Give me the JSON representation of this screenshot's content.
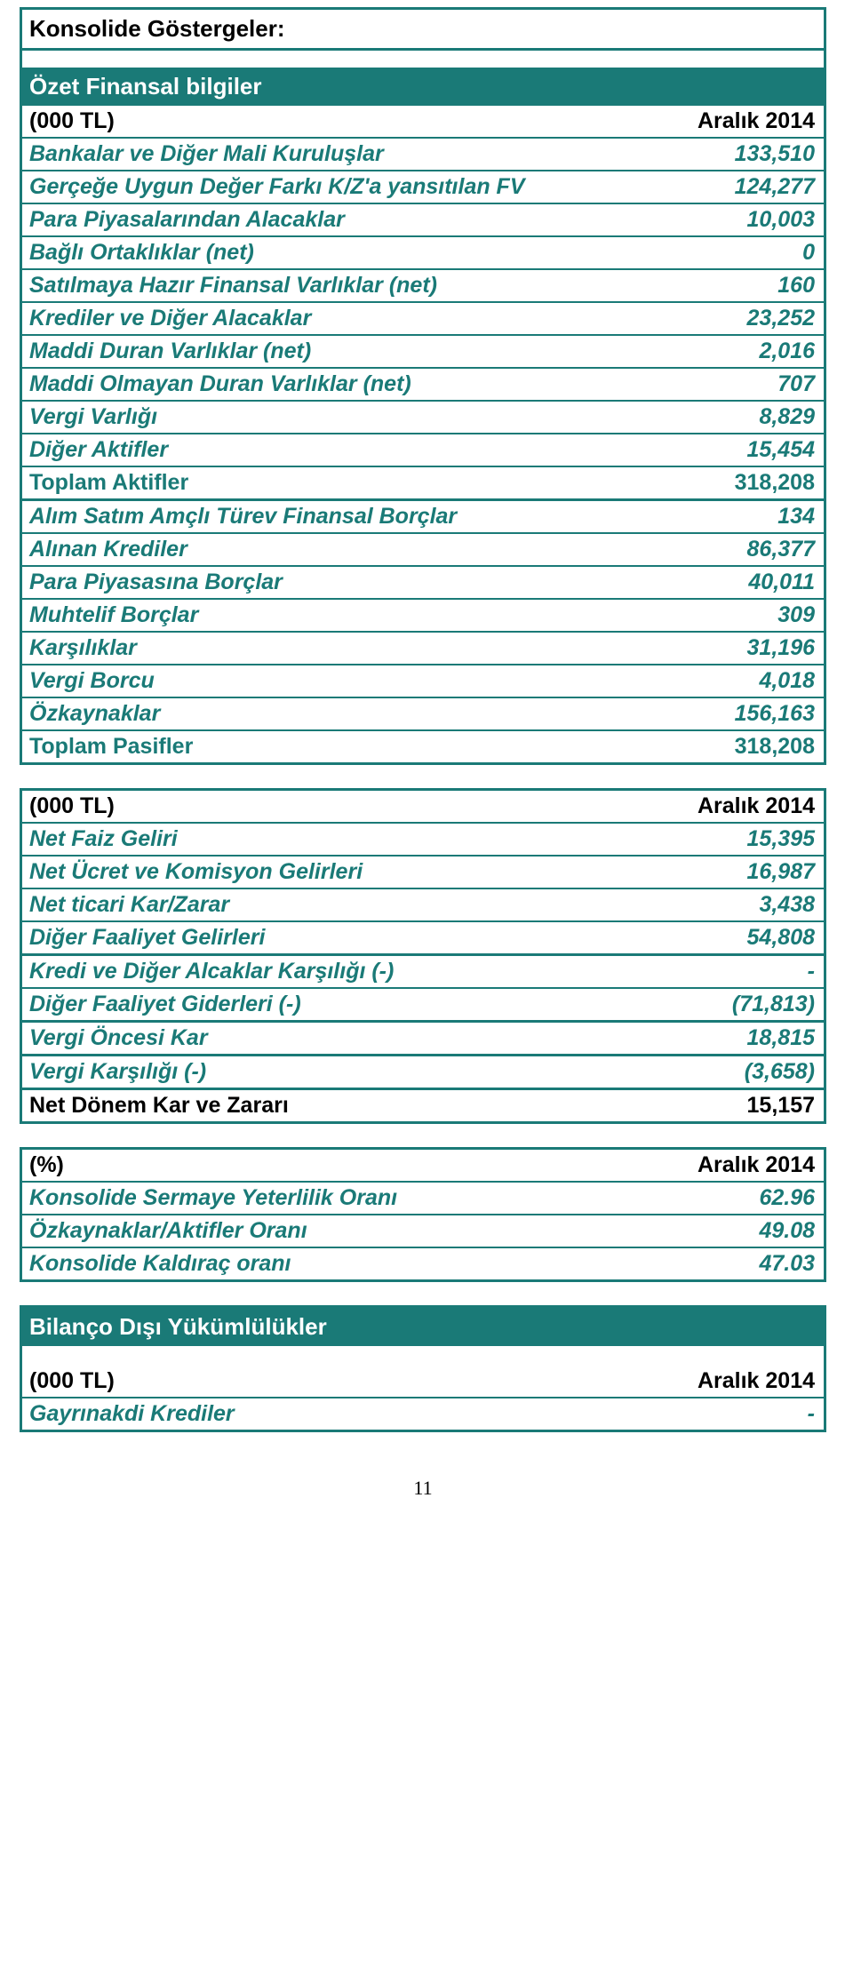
{
  "titles": {
    "konsolide": "Konsolide Göstergeler:",
    "ozet": "Özet Finansal bilgiler",
    "bilanco": "Bilanço Dışı Yükümlülükler"
  },
  "headers": {
    "tl": "(000 TL)",
    "pct": "(%)",
    "period": "Aralık 2014"
  },
  "assets": [
    {
      "label": "Bankalar ve Diğer Mali Kuruluşlar",
      "value": "133,510"
    },
    {
      "label": "Gerçeğe Uygun Değer Farkı K/Z'a yansıtılan FV",
      "value": "124,277"
    },
    {
      "label": "Para Piyasalarından Alacaklar",
      "value": "10,003"
    },
    {
      "label": "Bağlı Ortaklıklar (net)",
      "value": "0"
    },
    {
      "label": "Satılmaya Hazır Finansal Varlıklar (net)",
      "value": "160"
    },
    {
      "label": "Krediler ve Diğer Alacaklar",
      "value": "23,252"
    },
    {
      "label": "Maddi Duran Varlıklar (net)",
      "value": "2,016"
    },
    {
      "label": "Maddi Olmayan Duran Varlıklar (net)",
      "value": "707"
    },
    {
      "label": "Vergi Varlığı",
      "value": "8,829"
    },
    {
      "label": "Diğer Aktifler",
      "value": "15,454"
    }
  ],
  "assets_total": {
    "label": "Toplam Aktifler",
    "value": "318,208"
  },
  "liab": [
    {
      "label": "Alım Satım Amçlı Türev Finansal Borçlar",
      "value": "134"
    },
    {
      "label": "Alınan Krediler",
      "value": "86,377"
    },
    {
      "label": "Para Piyasasına Borçlar",
      "value": "40,011"
    },
    {
      "label": "Muhtelif Borçlar",
      "value": "309"
    },
    {
      "label": "Karşılıklar",
      "value": "31,196"
    },
    {
      "label": "Vergi Borcu",
      "value": "4,018"
    },
    {
      "label": "Özkaynaklar",
      "value": "156,163"
    }
  ],
  "liab_total": {
    "label": "Toplam Pasifler",
    "value": "318,208"
  },
  "income": [
    {
      "label": "Net Faiz Geliri",
      "value": "15,395",
      "thick": false
    },
    {
      "label": "Net Ücret ve Komisyon Gelirleri",
      "value": "16,987",
      "thick": false
    },
    {
      "label": "Net ticari Kar/Zarar",
      "value": "3,438",
      "thick": false
    },
    {
      "label": "Diğer Faaliyet Gelirleri",
      "value": "54,808",
      "thick": false
    },
    {
      "label": "Kredi ve Diğer Alcaklar Karşılığı (-)",
      "value": "-",
      "thick": true
    },
    {
      "label": "Diğer Faaliyet Giderleri (-)",
      "value": "(71,813)",
      "thick": false
    },
    {
      "label": "Vergi Öncesi Kar",
      "value": "18,815",
      "thick": true
    },
    {
      "label": "Vergi Karşılığı (-)",
      "value": "(3,658)",
      "thick": true
    }
  ],
  "income_net": {
    "label": "Net Dönem Kar ve Zararı",
    "value": "15,157"
  },
  "ratios": [
    {
      "label": "Konsolide Sermaye Yeterlilik Oranı",
      "value": "62.96"
    },
    {
      "label": "Özkaynaklar/Aktifler Oranı",
      "value": "49.08"
    },
    {
      "label": "Konsolide Kaldıraç oranı",
      "value": "47.03"
    }
  ],
  "offbal": {
    "label": "Gayrınakdi Krediler",
    "value": "-"
  },
  "page_num": "11",
  "colors": {
    "teal": "#1a7a77"
  }
}
